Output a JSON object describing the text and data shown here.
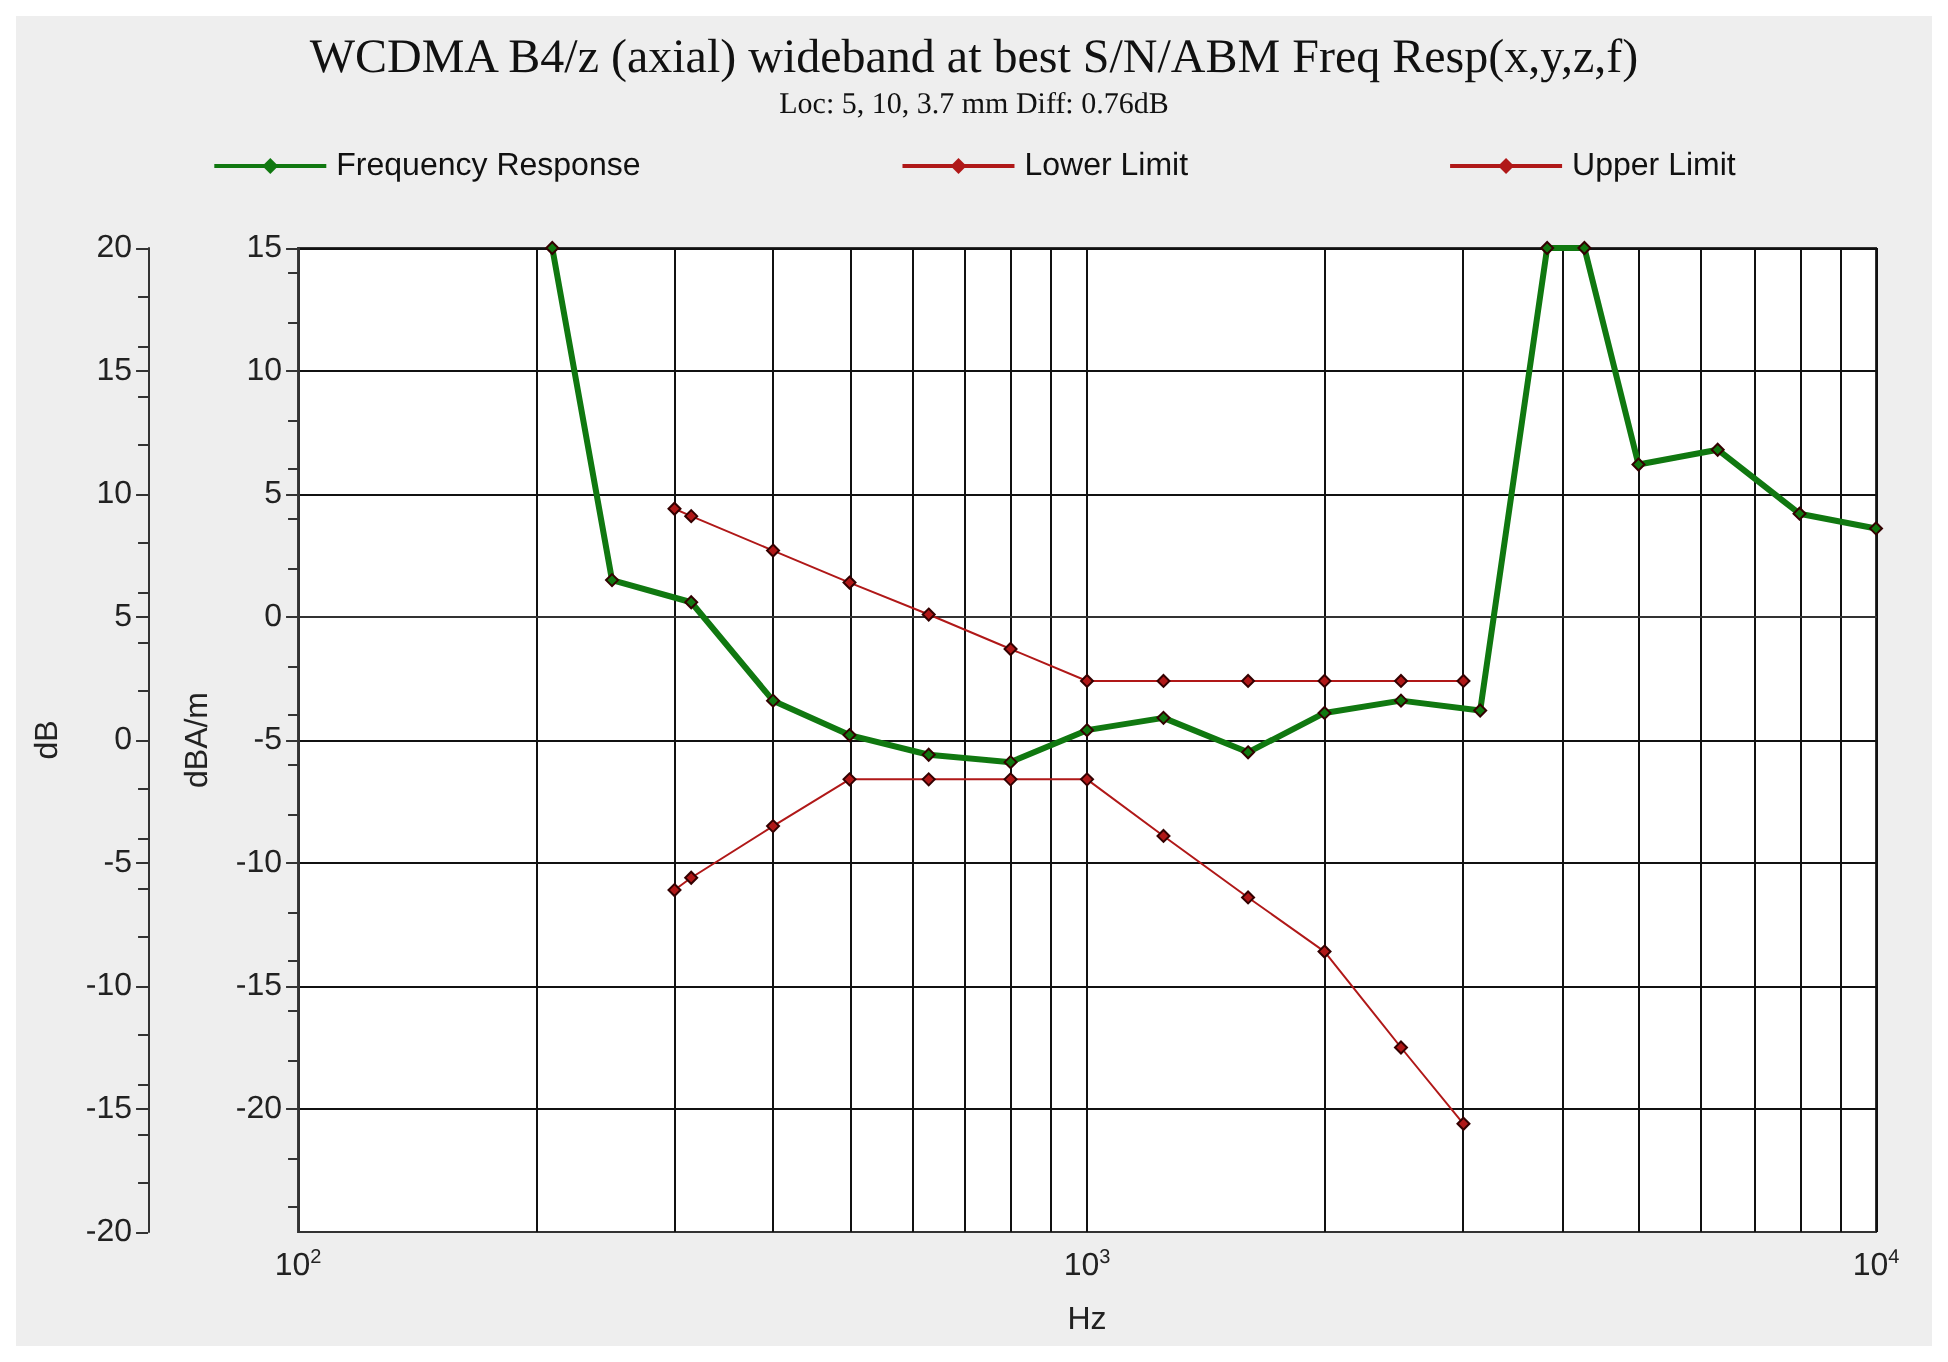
{
  "chart_data": {
    "type": "line",
    "title": "WCDMA B4/z (axial) wideband at best S/N/ABM Freq Resp(x,y,z,f)",
    "subtitle": "Loc: 5, 10, 3.7 mm Diff: 0.76dB",
    "xlabel": "Hz",
    "ylabel": "dBA/m",
    "y2label": "dB",
    "log": "x",
    "grid": true,
    "legend": "top",
    "marker": "diamond",
    "xlim": [
      100,
      10000
    ],
    "xticks": [
      {
        "value": 100,
        "label": "10$^{2}$"
      },
      {
        "value": 200,
        "label": null
      },
      {
        "value": 300,
        "label": null
      },
      {
        "value": 400,
        "label": null
      },
      {
        "value": 500,
        "label": null
      },
      {
        "value": 600,
        "label": null
      },
      {
        "value": 700,
        "label": null
      },
      {
        "value": 800,
        "label": null
      },
      {
        "value": 900,
        "label": null
      },
      {
        "value": 1000,
        "label": "10$^{3}$"
      },
      {
        "value": 2000,
        "label": null
      },
      {
        "value": 3000,
        "label": null
      },
      {
        "value": 4000,
        "label": null
      },
      {
        "value": 5000,
        "label": null
      },
      {
        "value": 6000,
        "label": null
      },
      {
        "value": 7000,
        "label": null
      },
      {
        "value": 8000,
        "label": null
      },
      {
        "value": 9000,
        "label": null
      },
      {
        "value": 10000,
        "label": "10$^{4}$"
      }
    ],
    "ylim": [
      -25,
      15
    ],
    "yticks": [
      -20,
      -15,
      -10,
      -5,
      0,
      5,
      10,
      15
    ],
    "y2lim": [
      -20,
      20
    ],
    "y2ticks": [
      -20,
      -15,
      -10,
      -5,
      0,
      5,
      10,
      15,
      20
    ],
    "series": [
      {
        "name": "Frequency Response",
        "color": "#107810",
        "x": [
          210,
          250,
          315,
          400,
          500,
          630,
          800,
          1000,
          1250,
          1600,
          2000,
          2500,
          3150,
          3830,
          4270,
          5000,
          6300,
          8000,
          10000
        ],
        "values": [
          15,
          1.5,
          0.6,
          -3.4,
          -4.8,
          -5.6,
          -5.9,
          -4.6,
          -4.1,
          -5.5,
          -3.9,
          -3.4,
          -3.8,
          15,
          15,
          6.2,
          6.8,
          4.2,
          3.6
        ]
      },
      {
        "name": "Lower Limit",
        "color": "#b01818",
        "x": [
          300,
          315,
          400,
          500,
          630,
          800,
          1000,
          1250,
          1600,
          2000,
          2500,
          3000
        ],
        "values": [
          -11.1,
          -10.6,
          -8.5,
          -6.6,
          -6.6,
          -6.6,
          -6.6,
          -8.9,
          -11.4,
          -13.6,
          -17.5,
          -20.6
        ]
      },
      {
        "name": "Upper Limit",
        "color": "#b01818",
        "x": [
          300,
          315,
          400,
          500,
          630,
          800,
          1000,
          1250,
          1600,
          2000,
          2500,
          3000
        ],
        "values": [
          4.4,
          4.1,
          2.7,
          1.4,
          0.1,
          -1.3,
          -2.6,
          -2.6,
          -2.6,
          -2.6,
          -2.6,
          -2.6
        ]
      }
    ]
  }
}
